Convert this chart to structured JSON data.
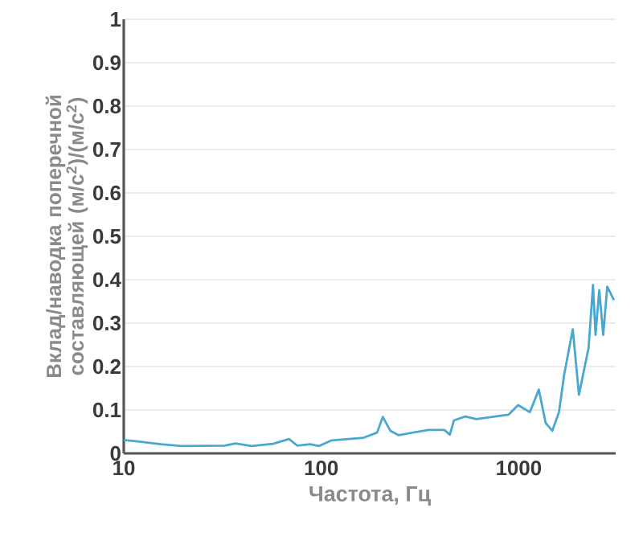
{
  "chart_data": {
    "type": "line",
    "xlabel": "Частота, Гц",
    "ylabel": "Вклад/наводка поперечной составляющей (м/с$^{2}$)/(м/с$^{2}$)",
    "log": "x",
    "grid": "y",
    "xlim": [
      10,
      3100
    ],
    "ylim": [
      0,
      1
    ],
    "xticks": [
      10,
      100,
      1000
    ],
    "yticks": [
      0,
      0.1,
      0.2,
      0.3,
      0.4,
      0.5,
      0.6,
      0.7,
      0.8,
      0.9,
      1
    ],
    "series": [
      {
        "color": "#4aa8d0",
        "x": [
          10,
          12,
          15.4,
          19.7,
          32.5,
          36.8,
          44.4,
          57,
          68.7,
          75.5,
          88,
          97.6,
          113,
          164,
          192,
          205,
          224,
          246,
          348,
          420,
          448,
          470,
          537,
          610,
          887,
          993,
          1140,
          1265,
          1370,
          1480,
          1600,
          1700,
          1880,
          2020,
          2260,
          2380,
          2450,
          2560,
          2680,
          2810,
          3040
        ],
        "values": [
          0.031,
          0.027,
          0.021,
          0.017,
          0.018,
          0.023,
          0.017,
          0.022,
          0.033,
          0.018,
          0.021,
          0.017,
          0.03,
          0.036,
          0.048,
          0.084,
          0.052,
          0.042,
          0.054,
          0.054,
          0.043,
          0.076,
          0.085,
          0.079,
          0.089,
          0.111,
          0.095,
          0.147,
          0.07,
          0.052,
          0.095,
          0.181,
          0.286,
          0.135,
          0.243,
          0.388,
          0.273,
          0.376,
          0.273,
          0.384,
          0.353
        ]
      }
    ]
  }
}
